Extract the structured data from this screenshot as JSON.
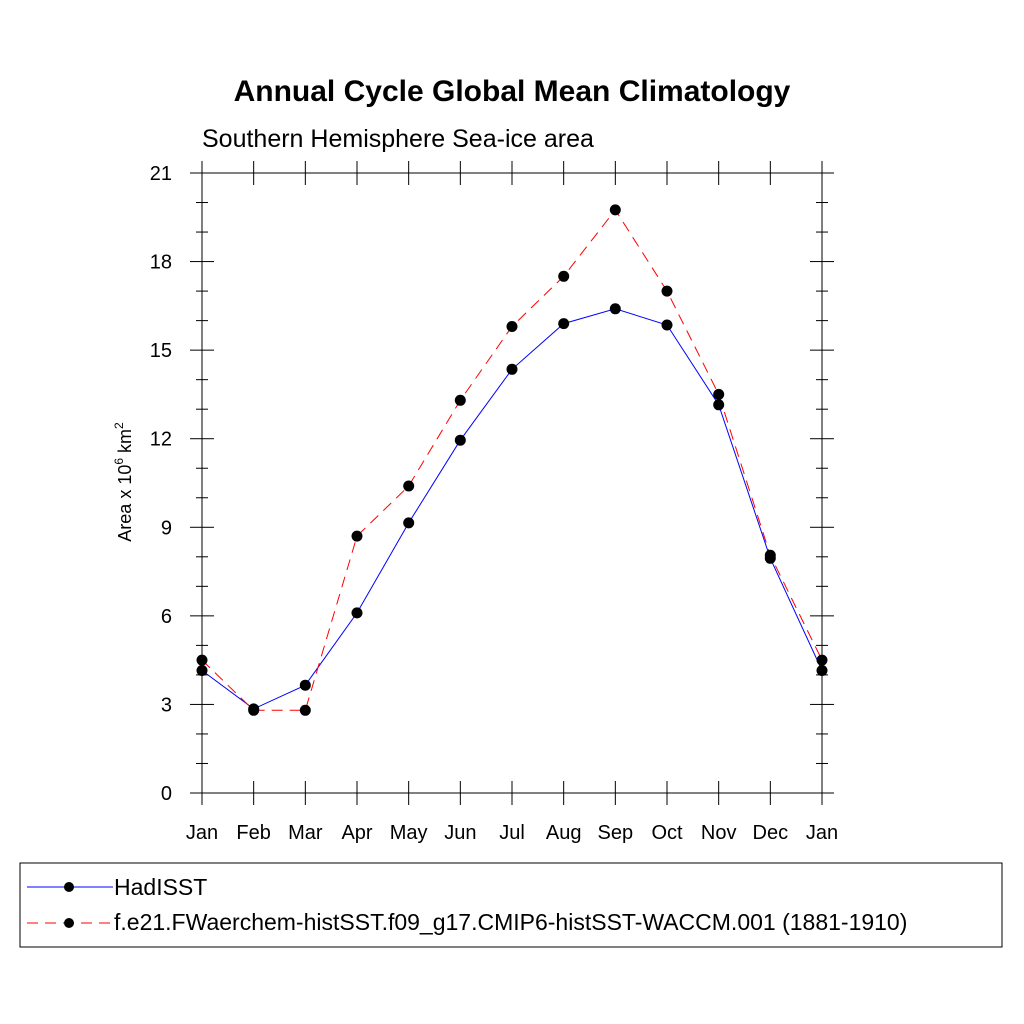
{
  "chart_data": {
    "type": "line",
    "title": "Annual Cycle Global Mean Climatology",
    "subtitle": "Southern Hemisphere Sea-ice area",
    "ylabel_parts": [
      "Area x 10",
      "6",
      " km",
      "2"
    ],
    "xlabel": "",
    "categories": [
      "Jan",
      "Feb",
      "Mar",
      "Apr",
      "May",
      "Jun",
      "Jul",
      "Aug",
      "Sep",
      "Oct",
      "Nov",
      "Dec",
      "Jan"
    ],
    "ylim": [
      0,
      21
    ],
    "yticks": [
      0,
      3,
      6,
      9,
      12,
      15,
      18,
      21
    ],
    "grid": false,
    "legend_position": "bottom",
    "series": [
      {
        "name": "HadISST",
        "color": "#0000ff",
        "dash": "solid",
        "values": [
          4.15,
          2.85,
          3.65,
          6.1,
          9.15,
          11.95,
          14.35,
          15.9,
          16.4,
          15.85,
          13.15,
          7.95,
          4.15
        ]
      },
      {
        "name": "f.e21.FWaerchem-histSST.f09_g17.CMIP6-histSST-WACCM.001 (1881-1910)",
        "color": "#ff0000",
        "dash": "dashed",
        "values": [
          4.5,
          2.8,
          2.8,
          8.7,
          10.4,
          13.3,
          15.8,
          17.5,
          19.75,
          17.0,
          13.5,
          8.05,
          4.5
        ]
      }
    ]
  }
}
